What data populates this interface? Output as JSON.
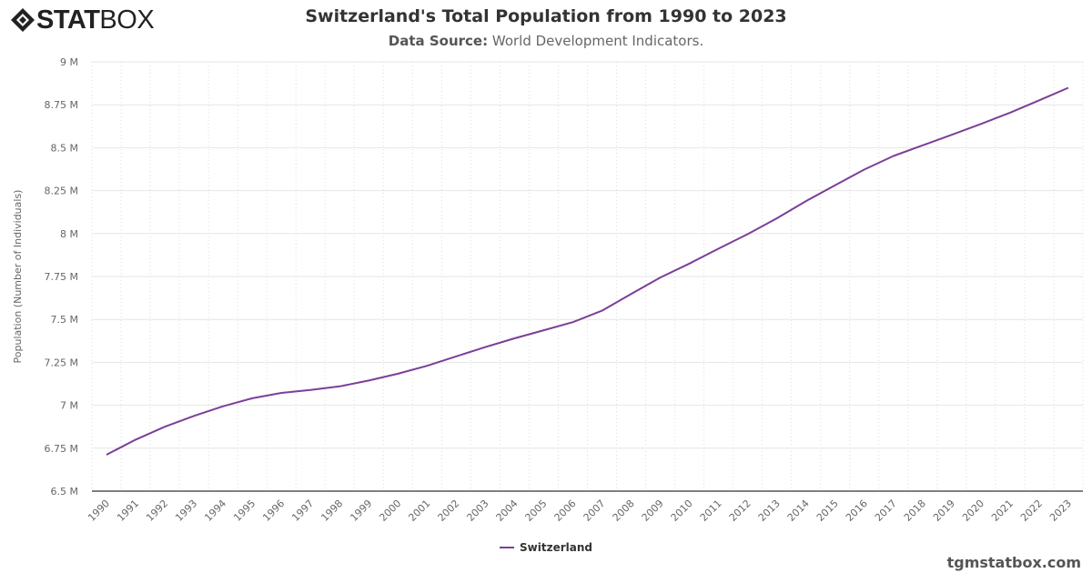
{
  "logo": {
    "bold": "STAT",
    "light": "BOX"
  },
  "header": {
    "title": "Switzerland's Total Population from 1990 to 2023",
    "source_label": "Data Source:",
    "source_value": " World Development Indicators."
  },
  "footer": {
    "site": "tgmstatbox.com"
  },
  "colors": {
    "line": "#7b3f98",
    "grid": "#e6e6e6",
    "axis": "#333333"
  },
  "chart_data": {
    "type": "line",
    "title": "Switzerland's Total Population from 1990 to 2023",
    "ylabel": "Population (Number of Individuals)",
    "xlabel": "",
    "ylim": [
      6.5,
      9
    ],
    "yticks": [
      6.5,
      6.75,
      7,
      7.25,
      7.5,
      7.75,
      8,
      8.25,
      8.5,
      8.75,
      9
    ],
    "ytick_labels": [
      "6.5 M",
      "6.75 M",
      "7 M",
      "7.25 M",
      "7.5 M",
      "7.75 M",
      "8 M",
      "8.25 M",
      "8.5 M",
      "8.75 M",
      "9 M"
    ],
    "grid": true,
    "legend_position": "bottom",
    "x": [
      "1990",
      "1991",
      "1992",
      "1993",
      "1994",
      "1995",
      "1996",
      "1997",
      "1998",
      "1999",
      "2000",
      "2001",
      "2002",
      "2003",
      "2004",
      "2005",
      "2006",
      "2007",
      "2008",
      "2009",
      "2010",
      "2011",
      "2012",
      "2013",
      "2014",
      "2015",
      "2016",
      "2017",
      "2018",
      "2019",
      "2020",
      "2021",
      "2022",
      "2023"
    ],
    "series": [
      {
        "name": "Switzerland",
        "unit": "M",
        "values": [
          6.712,
          6.8,
          6.875,
          6.938,
          6.994,
          7.041,
          7.072,
          7.089,
          7.11,
          7.144,
          7.184,
          7.23,
          7.285,
          7.339,
          7.39,
          7.437,
          7.484,
          7.551,
          7.648,
          7.744,
          7.825,
          7.912,
          7.997,
          8.089,
          8.189,
          8.282,
          8.373,
          8.452,
          8.514,
          8.575,
          8.638,
          8.704,
          8.776,
          8.849
        ]
      }
    ]
  }
}
